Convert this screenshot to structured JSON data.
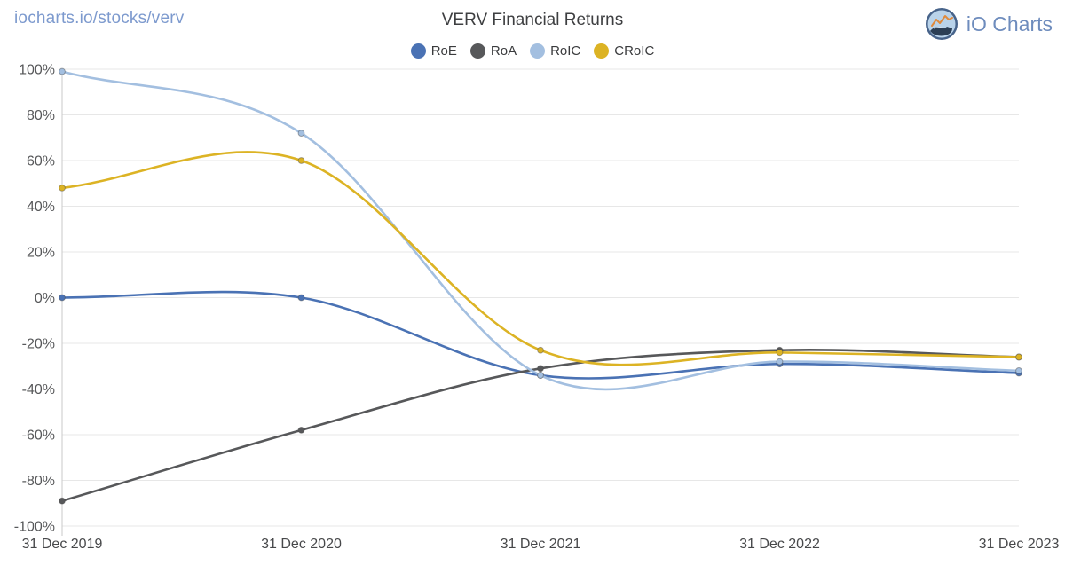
{
  "header": {
    "breadcrumb": "iocharts.io/stocks/verv",
    "title": "VERV Financial Returns",
    "brand": "iO Charts"
  },
  "chart_data": {
    "type": "line",
    "title": "VERV Financial Returns",
    "x": [
      "31 Dec 2019",
      "31 Dec 2020",
      "31 Dec 2021",
      "31 Dec 2022",
      "31 Dec 2023"
    ],
    "series": [
      {
        "name": "RoE",
        "color": "#4a72b4",
        "values": [
          0,
          0,
          -34,
          -29,
          -33
        ]
      },
      {
        "name": "RoA",
        "color": "#57585a",
        "values": [
          -89,
          -58,
          -31,
          -23,
          -26
        ]
      },
      {
        "name": "RoIC",
        "color": "#a3bfe0",
        "values": [
          99,
          72,
          -34,
          -28,
          -32
        ]
      },
      {
        "name": "CRoIC",
        "color": "#dcb324",
        "values": [
          48,
          60,
          -23,
          -24,
          -26
        ]
      }
    ],
    "ylim": [
      -100,
      100
    ],
    "y_tick_step": 20,
    "y_tick_suffix": "%",
    "grid": true,
    "grid_color": "#e7e7e7",
    "axis_color": "#c9c9c9",
    "tick_label_color": "#57585a",
    "x_label_color": "#47484a",
    "legend_position": "top",
    "curve": "catmull-rom"
  }
}
